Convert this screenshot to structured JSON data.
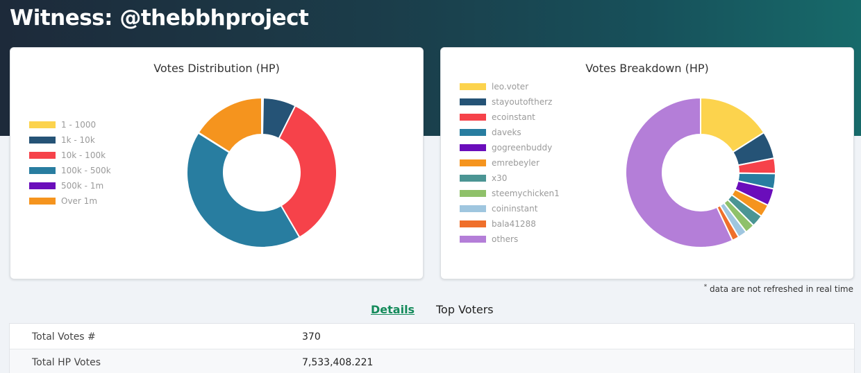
{
  "header": {
    "title": "Witness: @thebbhproject"
  },
  "colors": {
    "yellow": "#fcd34d",
    "navy": "#255376",
    "red": "#f6424a",
    "blue": "#287da0",
    "purple": "#6a0dbb",
    "orange": "#f5941e",
    "teal": "#4b9594",
    "green": "#8fc16a",
    "lightblue": "#9fc6df",
    "darkorange": "#ef6f2b",
    "lavender": "#b47ed8",
    "active_tab": "#138a5a"
  },
  "distribution": {
    "title": "Votes Distribution (HP)",
    "legend": [
      "1 - 1000",
      "1k - 10k",
      "10k - 100k",
      "100k - 500k",
      "500k - 1m",
      "Over 1m"
    ]
  },
  "breakdown": {
    "title": "Votes Breakdown (HP)",
    "legend": [
      "leo.voter",
      "stayoutoftherz",
      "ecoinstant",
      "daveks",
      "gogreenbuddy",
      "emrebeyler",
      "x30",
      "steemychicken1",
      "coininstant",
      "bala41288",
      "others"
    ]
  },
  "chart_data": [
    {
      "type": "pie",
      "title": "Votes Distribution (HP)",
      "categories": [
        "1 - 1000",
        "1k - 10k",
        "10k - 100k",
        "100k - 500k",
        "500k - 1m",
        "Over 1m"
      ],
      "values": [
        0.3,
        7.1,
        34.2,
        42.3,
        0.1,
        16.0
      ],
      "colors": [
        "#fcd34d",
        "#255376",
        "#f6424a",
        "#287da0",
        "#6a0dbb",
        "#f5941e"
      ],
      "legend": "left"
    },
    {
      "type": "pie",
      "title": "Votes Breakdown (HP)",
      "categories": [
        "leo.voter",
        "stayoutoftherz",
        "ecoinstant",
        "daveks",
        "gogreenbuddy",
        "emrebeyler",
        "x30",
        "steemychicken1",
        "coininstant",
        "bala41288",
        "others"
      ],
      "values": [
        16.0,
        5.9,
        3.3,
        3.3,
        3.7,
        2.7,
        2.6,
        2.1,
        1.9,
        1.5,
        57.0
      ],
      "colors": [
        "#fcd34d",
        "#255376",
        "#f6424a",
        "#287da0",
        "#6a0dbb",
        "#f5941e",
        "#4b9594",
        "#8fc16a",
        "#9fc6df",
        "#ef6f2b",
        "#b47ed8"
      ],
      "legend": "left"
    }
  ],
  "footnote": "data are not refreshed in real time",
  "tabs": [
    "Details",
    "Top Voters"
  ],
  "details": [
    {
      "label": "Total Votes #",
      "value": "370"
    },
    {
      "label": "Total HP Votes",
      "value": "7,533,408.221"
    }
  ]
}
